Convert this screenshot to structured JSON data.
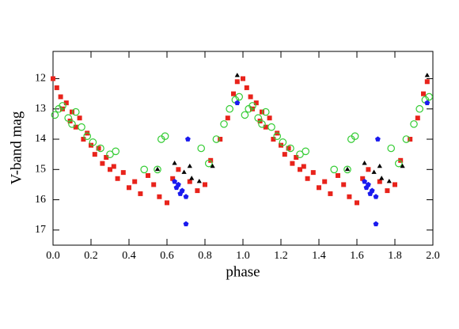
{
  "chart_data": {
    "type": "scatter",
    "xlabel": "phase",
    "ylabel": "V-band mag",
    "xlim": [
      0,
      2
    ],
    "ylim": [
      11.1,
      17.5
    ],
    "invert_y": true,
    "xticks": [
      {
        "value": 0,
        "label": "0.0"
      },
      0.2,
      0.4,
      0.6,
      0.8,
      {
        "value": 1,
        "label": "1.0"
      },
      1.2,
      1.4,
      1.6,
      1.8,
      {
        "value": 2,
        "label": "2.0"
      }
    ],
    "yticks": [
      12,
      13,
      14,
      15,
      16,
      17
    ],
    "series": [
      {
        "color": "#e8231b",
        "marker": "square",
        "x": [
          0,
          0.02,
          0.04,
          0.05,
          0.07,
          0.09,
          0.1,
          0.12,
          0.14,
          0.16,
          0.18,
          0.2,
          0.22,
          0.24,
          0.26,
          0.28,
          0.3,
          0.32,
          0.34,
          0.37,
          0.4,
          0.43,
          0.46,
          0.5,
          0.53,
          0.56,
          0.6,
          0.63,
          0.66,
          0.72,
          0.76,
          0.8,
          0.83,
          0.88,
          0.92,
          0.95,
          0.97,
          1,
          1.02,
          1.04,
          1.05,
          1.07,
          1.09,
          1.1,
          1.12,
          1.14,
          1.16,
          1.18,
          1.2,
          1.22,
          1.24,
          1.26,
          1.28,
          1.3,
          1.32,
          1.34,
          1.37,
          1.4,
          1.43,
          1.46,
          1.5,
          1.53,
          1.56,
          1.6,
          1.63,
          1.66,
          1.72,
          1.76,
          1.8,
          1.83,
          1.88,
          1.92,
          1.95,
          1.97
        ],
        "values": [
          12,
          12.3,
          12.6,
          13,
          12.8,
          13.4,
          13.1,
          13.6,
          13.3,
          14,
          13.8,
          14.2,
          14.5,
          14.3,
          14.8,
          14.6,
          15,
          14.9,
          15.3,
          15.1,
          15.6,
          15.4,
          15.8,
          15.2,
          15.5,
          15.9,
          16.1,
          15.3,
          15,
          15.4,
          15.7,
          15.5,
          14.7,
          14,
          13.3,
          12.5,
          12.1,
          12,
          12.3,
          12.6,
          13,
          12.8,
          13.4,
          13.1,
          13.6,
          13.3,
          14,
          13.8,
          14.2,
          14.5,
          14.3,
          14.8,
          14.6,
          15,
          14.9,
          15.3,
          15.1,
          15.6,
          15.4,
          15.8,
          15.2,
          15.5,
          15.9,
          16.1,
          15.3,
          15,
          15.4,
          15.7,
          15.5,
          14.7,
          14,
          13.3,
          12.5,
          12.1
        ]
      },
      {
        "color": "#33cc33",
        "marker": "circle",
        "x": [
          0.01,
          0.03,
          0.05,
          0.08,
          0.1,
          0.12,
          0.15,
          0.18,
          0.21,
          0.25,
          0.3,
          0.33,
          0.48,
          0.55,
          0.57,
          0.59,
          0.78,
          0.82,
          0.86,
          0.9,
          0.93,
          0.96,
          0.98,
          1.01,
          1.03,
          1.05,
          1.08,
          1.1,
          1.12,
          1.15,
          1.18,
          1.21,
          1.25,
          1.3,
          1.33,
          1.48,
          1.55,
          1.57,
          1.59,
          1.78,
          1.82,
          1.86,
          1.9,
          1.93,
          1.96,
          1.98
        ],
        "values": [
          13.2,
          13,
          12.9,
          13.3,
          13.5,
          13.1,
          13.6,
          13.9,
          14.1,
          14.3,
          14.5,
          14.4,
          15,
          15,
          14,
          13.9,
          14.3,
          14.8,
          14,
          13.5,
          13,
          12.7,
          12.6,
          13.2,
          13,
          12.9,
          13.3,
          13.5,
          13.1,
          13.6,
          13.9,
          14.1,
          14.3,
          14.5,
          14.4,
          15,
          15,
          14,
          13.9,
          14.3,
          14.8,
          14,
          13.5,
          13,
          12.7,
          12.6
        ]
      },
      {
        "color": "#000000",
        "marker": "triangle",
        "x": [
          0.55,
          0.64,
          0.69,
          0.72,
          0.73,
          0.77,
          0.84,
          0.97,
          1.55,
          1.64,
          1.69,
          1.72,
          1.73,
          1.77,
          1.84,
          1.97
        ],
        "values": [
          15,
          14.8,
          15.1,
          14.9,
          15.3,
          15.4,
          14.9,
          11.9,
          15,
          14.8,
          15.1,
          14.9,
          15.3,
          15.4,
          14.9,
          11.9
        ]
      },
      {
        "color": "#1a1aee",
        "marker": "pentagon",
        "x": [
          0.64,
          0.65,
          0.66,
          0.67,
          0.68,
          0.7,
          0.71,
          0.7,
          0.97,
          1.64,
          1.65,
          1.66,
          1.67,
          1.68,
          1.7,
          1.71,
          1.7,
          1.97
        ],
        "values": [
          15.4,
          15.6,
          15.5,
          15.8,
          15.7,
          15.9,
          14,
          16.8,
          12.8,
          15.4,
          15.6,
          15.5,
          15.8,
          15.7,
          15.9,
          14,
          16.8,
          12.8
        ]
      }
    ]
  }
}
